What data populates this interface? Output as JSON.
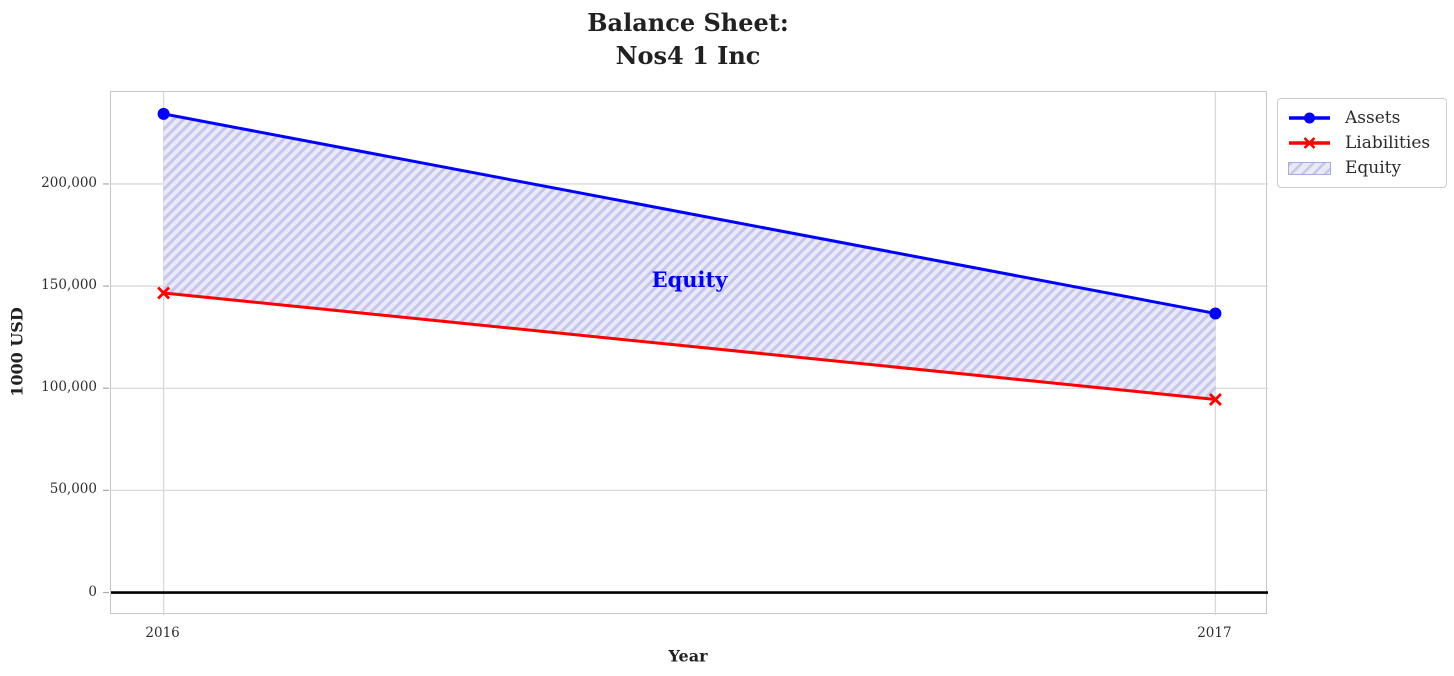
{
  "header": {
    "title_line1": "Balance Sheet:",
    "title_line2": "Nos4 1 Inc"
  },
  "chart_data": {
    "type": "line",
    "title": "Balance Sheet: Nos4 1 Inc",
    "xlabel": "Year",
    "ylabel": "1000 USD",
    "x": [
      2016,
      2017
    ],
    "xtick_labels": [
      "2016",
      "2017"
    ],
    "yticks": [
      0,
      50000,
      100000,
      150000,
      200000
    ],
    "ytick_labels": [
      "0",
      "50,000",
      "100,000",
      "150,000",
      "200,000"
    ],
    "xlim": [
      2015.95,
      2017.05
    ],
    "ylim": [
      -11000,
      245000
    ],
    "grid": true,
    "zero_line": {
      "y": 0,
      "color": "#000000"
    },
    "series": [
      {
        "name": "Assets",
        "values": [
          234300,
          136600
        ],
        "color": "#0000ff",
        "marker": "circle"
      },
      {
        "name": "Liabilities",
        "values": [
          146600,
          94500
        ],
        "color": "#ff0000",
        "marker": "x"
      }
    ],
    "area": {
      "name": "Equity",
      "between": [
        "Assets",
        "Liabilities"
      ],
      "values": [
        87700,
        42100
      ],
      "fill": "#e9e9f8",
      "hatch": "//",
      "hatch_color": "#c5c5ee"
    },
    "annotation": {
      "text": "Equity",
      "x": 2016.5,
      "y": 153000,
      "color": "#0000ff"
    },
    "legend": {
      "position": "upper right",
      "entries": [
        "Assets",
        "Liabilities",
        "Equity"
      ]
    }
  }
}
